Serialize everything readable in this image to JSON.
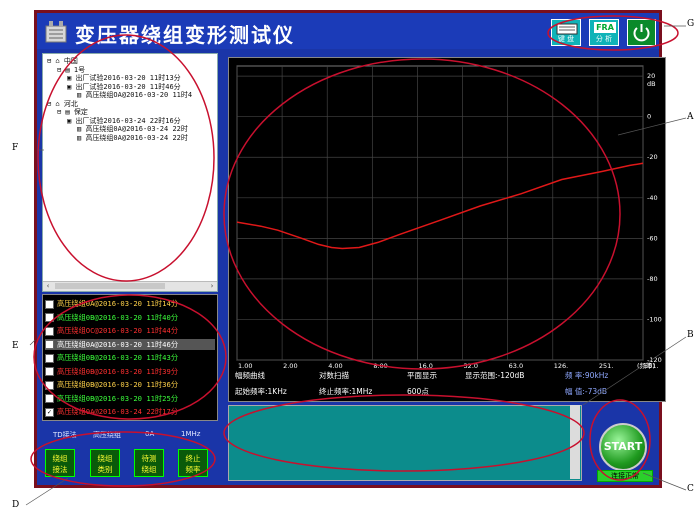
{
  "app": {
    "title": "变压器绕组变形测试仪"
  },
  "toolbar": {
    "keyboard_label": "键 盘",
    "fra_text": "FRA",
    "fra_label": "分 析"
  },
  "tree": {
    "nodes": [
      {
        "text": "中国",
        "level": 0
      },
      {
        "text": "1号",
        "level": 1
      },
      {
        "text": "出厂试验2016-03-20 11时13分",
        "level": 2
      },
      {
        "text": "出厂试验2016-03-20 11时46分",
        "level": 2
      },
      {
        "text": "高压绕组OA@2016-03-20 11时4",
        "level": 3
      },
      {
        "text": "河北",
        "level": 0
      },
      {
        "text": "保定",
        "level": 1
      },
      {
        "text": "出厂试验2016-03-24 22时16分",
        "level": 2
      },
      {
        "text": "高压绕组0A@2016-03-24 22时",
        "level": 3
      },
      {
        "text": "高压绕组0A@2016-03-24 22时",
        "level": 3
      }
    ]
  },
  "records": [
    {
      "text": "高压绕组0A@2016-03-20 11时14分",
      "color": "#ffd24a",
      "checked": false,
      "selected": false
    },
    {
      "text": "高压绕组0B@2016-03-20 11时40分",
      "color": "#3cff3c",
      "checked": false,
      "selected": false
    },
    {
      "text": "高压绕组OC@2016-03-20 11时44分",
      "color": "#ff3030",
      "checked": false,
      "selected": false
    },
    {
      "text": "高压绕组0A@2016-03-20 11时46分",
      "color": "#ffffff",
      "checked": false,
      "selected": true
    },
    {
      "text": "高压绕组0B@2016-03-20 11时43分",
      "color": "#3cff3c",
      "checked": false,
      "selected": false
    },
    {
      "text": "高压绕组0B@2016-03-20 11时39分",
      "color": "#ff3030",
      "checked": false,
      "selected": false
    },
    {
      "text": "高压绕组0B@2016-03-20 11时36分",
      "color": "#ffd24a",
      "checked": false,
      "selected": false
    },
    {
      "text": "高压绕组0B@2016-03-20 11时25分",
      "color": "#3cff3c",
      "checked": false,
      "selected": false
    },
    {
      "text": "高压绕组0A@2016-03-24 22时17分",
      "color": "#ff3030",
      "checked": true,
      "selected": false
    }
  ],
  "info": {
    "method": "TD接法",
    "winding": "高压绕组",
    "phase": "0A",
    "freq": "1MHz"
  },
  "buttons": [
    {
      "label1": "绕组",
      "label2": "接法"
    },
    {
      "label1": "绕组",
      "label2": "类别"
    },
    {
      "label1": "待测",
      "label2": "绕组"
    },
    {
      "label1": "终止",
      "label2": "频率"
    }
  ],
  "chart_data": {
    "type": "line",
    "x_tick_labels": [
      "1.00",
      "2.00",
      "4.00",
      "8.00",
      "16.0",
      "32.0",
      "63.0",
      "126.",
      "251.",
      "501."
    ],
    "x_unit_label": "(频率)",
    "y_ticks": [
      20,
      0,
      -20,
      -40,
      -60,
      -80,
      -100,
      -120
    ],
    "y_unit_label": "dB",
    "ylim": [
      -120,
      25
    ],
    "scale": "log",
    "series": [
      {
        "color": "#e01818",
        "x": [
          1,
          1.5,
          2,
          3,
          4,
          5,
          6,
          8,
          11,
          16,
          32,
          63,
          126,
          251,
          501,
          800,
          1000
        ],
        "y": [
          -52,
          -54,
          -56,
          -60,
          -63,
          -64.5,
          -65,
          -64.5,
          -62,
          -58,
          -51,
          -44,
          -38,
          -31,
          -27,
          -24,
          -23
        ]
      }
    ],
    "footer": {
      "curve_type": "幅频曲线",
      "scan_mode": "对数扫描",
      "display_mode": "平面显示",
      "range": "显示范围:-120dB",
      "start_freq": "起始频率:1KHz",
      "stop_freq": "终止频率:1MHz",
      "points": "600点",
      "freq_readout": "频  率:90kHz",
      "amp_readout": "幅  值:-73dB"
    }
  },
  "start_button": {
    "label": "START"
  },
  "status": {
    "text": "连接正常"
  },
  "callouts": [
    "A",
    "B",
    "C",
    "D",
    "E",
    "F",
    "G"
  ]
}
